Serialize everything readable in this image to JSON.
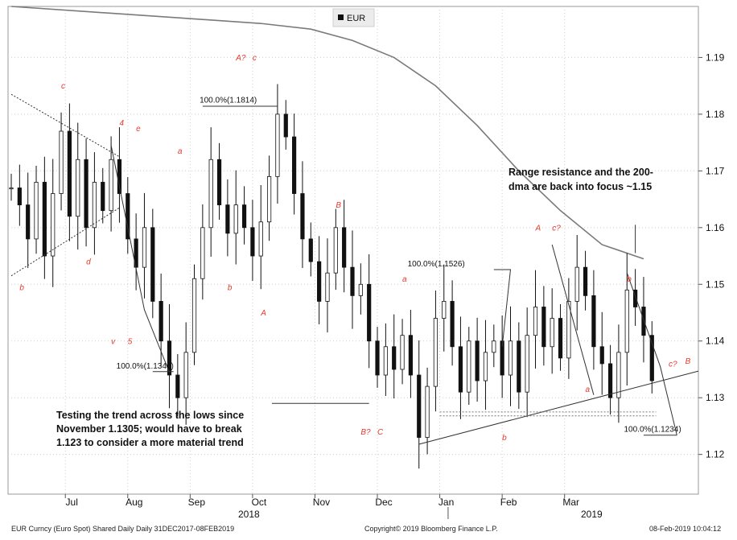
{
  "chart_data": {
    "type": "candlestick",
    "legend": {
      "label": "EUR",
      "placement": "top-center",
      "swatch_color": "#111111"
    },
    "y_axis": {
      "side": "right",
      "ylim": [
        1.113,
        1.199
      ],
      "ticks": [
        "1.12",
        "1.13",
        "1.14",
        "1.15",
        "1.16",
        "1.17",
        "1.18",
        "1.19"
      ]
    },
    "x_axis": {
      "month_ticks": [
        "Jul",
        "Aug",
        "Sep",
        "Oct",
        "Nov",
        "Dec",
        "Jan",
        "Feb",
        "Mar"
      ],
      "year_labels": [
        "2018",
        "2019"
      ]
    },
    "grid": "dotted",
    "price_series": [
      {
        "t": 0,
        "v": 1.167
      },
      {
        "t": 1,
        "v": 1.164
      },
      {
        "t": 2,
        "v": 1.158
      },
      {
        "t": 3,
        "v": 1.168
      },
      {
        "t": 4,
        "v": 1.155
      },
      {
        "t": 5,
        "v": 1.166
      },
      {
        "t": 6,
        "v": 1.177
      },
      {
        "t": 7,
        "v": 1.162
      },
      {
        "t": 8,
        "v": 1.172
      },
      {
        "t": 9,
        "v": 1.16
      },
      {
        "t": 10,
        "v": 1.168
      },
      {
        "t": 11,
        "v": 1.163
      },
      {
        "t": 12,
        "v": 1.172
      },
      {
        "t": 13,
        "v": 1.166
      },
      {
        "t": 14,
        "v": 1.158
      },
      {
        "t": 15,
        "v": 1.153
      },
      {
        "t": 16,
        "v": 1.16
      },
      {
        "t": 17,
        "v": 1.147
      },
      {
        "t": 18,
        "v": 1.14
      },
      {
        "t": 19,
        "v": 1.134
      },
      {
        "t": 20,
        "v": 1.13
      },
      {
        "t": 21,
        "v": 1.138
      },
      {
        "t": 22,
        "v": 1.151
      },
      {
        "t": 23,
        "v": 1.16
      },
      {
        "t": 24,
        "v": 1.172
      },
      {
        "t": 25,
        "v": 1.164
      },
      {
        "t": 26,
        "v": 1.159
      },
      {
        "t": 27,
        "v": 1.164
      },
      {
        "t": 28,
        "v": 1.16
      },
      {
        "t": 29,
        "v": 1.155
      },
      {
        "t": 30,
        "v": 1.161
      },
      {
        "t": 31,
        "v": 1.169
      },
      {
        "t": 32,
        "v": 1.18
      },
      {
        "t": 33,
        "v": 1.176
      },
      {
        "t": 34,
        "v": 1.166
      },
      {
        "t": 35,
        "v": 1.158
      },
      {
        "t": 36,
        "v": 1.154
      },
      {
        "t": 37,
        "v": 1.147
      },
      {
        "t": 38,
        "v": 1.152
      },
      {
        "t": 39,
        "v": 1.16
      },
      {
        "t": 40,
        "v": 1.153
      },
      {
        "t": 41,
        "v": 1.148
      },
      {
        "t": 42,
        "v": 1.15
      },
      {
        "t": 43,
        "v": 1.14
      },
      {
        "t": 44,
        "v": 1.134
      },
      {
        "t": 45,
        "v": 1.139
      },
      {
        "t": 46,
        "v": 1.135
      },
      {
        "t": 47,
        "v": 1.141
      },
      {
        "t": 48,
        "v": 1.134
      },
      {
        "t": 49,
        "v": 1.123
      },
      {
        "t": 50,
        "v": 1.132
      },
      {
        "t": 51,
        "v": 1.144
      },
      {
        "t": 52,
        "v": 1.147
      },
      {
        "t": 53,
        "v": 1.139
      },
      {
        "t": 54,
        "v": 1.131
      },
      {
        "t": 55,
        "v": 1.14
      },
      {
        "t": 56,
        "v": 1.133
      },
      {
        "t": 57,
        "v": 1.138
      },
      {
        "t": 58,
        "v": 1.14
      },
      {
        "t": 59,
        "v": 1.134
      },
      {
        "t": 60,
        "v": 1.14
      },
      {
        "t": 61,
        "v": 1.131
      },
      {
        "t": 62,
        "v": 1.141
      },
      {
        "t": 63,
        "v": 1.146
      },
      {
        "t": 64,
        "v": 1.139
      },
      {
        "t": 65,
        "v": 1.144
      },
      {
        "t": 66,
        "v": 1.137
      },
      {
        "t": 67,
        "v": 1.147
      },
      {
        "t": 68,
        "v": 1.153
      },
      {
        "t": 69,
        "v": 1.148
      },
      {
        "t": 70,
        "v": 1.139
      },
      {
        "t": 71,
        "v": 1.136
      },
      {
        "t": 72,
        "v": 1.13
      },
      {
        "t": 73,
        "v": 1.138
      },
      {
        "t": 74,
        "v": 1.149
      },
      {
        "t": 75,
        "v": 1.146
      },
      {
        "t": 76,
        "v": 1.141
      },
      {
        "t": 77,
        "v": 1.133
      }
    ],
    "ma200_series": [
      {
        "t": 0,
        "v": 1.199
      },
      {
        "t": 10,
        "v": 1.198
      },
      {
        "t": 20,
        "v": 1.197
      },
      {
        "t": 30,
        "v": 1.196
      },
      {
        "t": 36,
        "v": 1.195
      },
      {
        "t": 41,
        "v": 1.193
      },
      {
        "t": 46,
        "v": 1.19
      },
      {
        "t": 51,
        "v": 1.185
      },
      {
        "t": 56,
        "v": 1.178
      },
      {
        "t": 61,
        "v": 1.17
      },
      {
        "t": 66,
        "v": 1.163
      },
      {
        "t": 71,
        "v": 1.157
      },
      {
        "t": 76,
        "v": 1.1545
      }
    ],
    "fib_labels": [
      {
        "text": "100.0%(1.1814)",
        "t": 30,
        "v": 1.1815
      },
      {
        "text": "100.0%(1.1346)",
        "t": 20,
        "v": 1.1346
      },
      {
        "text": "100.0%(1.1526)",
        "t": 55,
        "v": 1.1526
      },
      {
        "text": "100.0%(1.1234)",
        "t": 81,
        "v": 1.1234
      }
    ],
    "wave_labels": [
      {
        "text": "c",
        "t": 6,
        "v": 1.1845
      },
      {
        "text": "4",
        "t": 13,
        "v": 1.178
      },
      {
        "text": "e",
        "t": 15,
        "v": 1.177
      },
      {
        "text": "a",
        "t": 20,
        "v": 1.173
      },
      {
        "text": "A?",
        "t": 27,
        "v": 1.1895
      },
      {
        "text": "c",
        "t": 29,
        "v": 1.1895
      },
      {
        "text": "B",
        "t": 39,
        "v": 1.1635
      },
      {
        "text": "d",
        "t": 9,
        "v": 1.1535
      },
      {
        "text": "b",
        "t": 1,
        "v": 1.149
      },
      {
        "text": "b",
        "t": 26,
        "v": 1.149
      },
      {
        "text": "A",
        "t": 30,
        "v": 1.1445
      },
      {
        "text": "a",
        "t": 47,
        "v": 1.1505
      },
      {
        "text": "v",
        "t": 12,
        "v": 1.1395
      },
      {
        "text": "5",
        "t": 14,
        "v": 1.1395
      },
      {
        "text": "B?",
        "t": 42,
        "v": 1.1235
      },
      {
        "text": "C",
        "t": 44,
        "v": 1.1235
      },
      {
        "text": "A",
        "t": 63,
        "v": 1.1595
      },
      {
        "text": "c?",
        "t": 65,
        "v": 1.1595
      },
      {
        "text": "b",
        "t": 74,
        "v": 1.1505
      },
      {
        "text": "c?",
        "t": 79,
        "v": 1.1355
      },
      {
        "text": "B",
        "t": 81,
        "v": 1.136
      },
      {
        "text": "a",
        "t": 69,
        "v": 1.131
      },
      {
        "text": "b",
        "t": 59,
        "v": 1.1225
      }
    ],
    "annotations": [
      {
        "text": "Range resistance and the 200-",
        "line": 1
      },
      {
        "text": "dma are back into focus ~1.15",
        "line": 2
      },
      {
        "text": "Testing the trend across the lows since",
        "line": 1
      },
      {
        "text": "November 1.1305; would have to break",
        "line": 2
      },
      {
        "text": "1.123 to consider a more material trend",
        "line": 3
      }
    ]
  },
  "footer": {
    "left": "EUR Curncy (Euro Spot) Shared Daily  Daily 31DEC2017-08FEB2019",
    "center": "Copyright© 2019 Bloomberg Finance L.P.",
    "right": "08-Feb-2019 10:04:12"
  }
}
